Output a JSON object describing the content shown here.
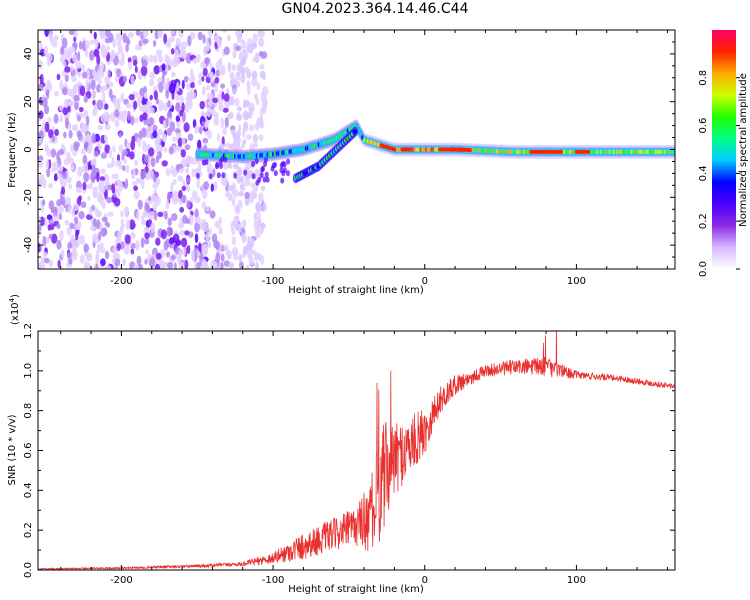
{
  "title": "GN04.2023.364.14.46.C44",
  "chart_data": [
    {
      "type": "heatmap",
      "name": "spectrogram",
      "xlabel": "Height of straight line (km)",
      "ylabel": "Frequency (Hz)",
      "xlim": [
        -255,
        165
      ],
      "ylim": [
        -50,
        50
      ],
      "xticks": [
        -200,
        -100,
        0,
        100
      ],
      "yticks": [
        -40,
        -20,
        0,
        20,
        40
      ],
      "colorbar": {
        "label": "Normalized spectral amplitude",
        "range": [
          0.0,
          1.0
        ],
        "ticks": [
          "0.0",
          "0.2",
          "0.4",
          "0.6",
          "0.8"
        ],
        "colors": [
          "#ffffff",
          "#d6b8ff",
          "#8a2be2",
          "#4b00ff",
          "#0000ff",
          "#00ccff",
          "#00ff88",
          "#22ff00",
          "#ccff00",
          "#ffaa00",
          "#ff2200",
          "#ff0066"
        ]
      },
      "features": {
        "noise_region_x": [
          -255,
          -115
        ],
        "main_line": [
          [
            -150,
            -2
          ],
          [
            -120,
            -3
          ],
          [
            -100,
            -2
          ],
          [
            -80,
            0
          ],
          [
            -60,
            4
          ],
          [
            -45,
            10
          ],
          [
            -40,
            4
          ],
          [
            -30,
            2
          ],
          [
            -20,
            0
          ],
          [
            0,
            0
          ],
          [
            20,
            0
          ],
          [
            60,
            -1
          ],
          [
            100,
            -1
          ],
          [
            165,
            -1
          ]
        ],
        "secondary_line": [
          [
            -85,
            -12
          ],
          [
            -70,
            -7
          ],
          [
            -55,
            2
          ],
          [
            -45,
            8
          ]
        ]
      }
    },
    {
      "type": "line",
      "name": "snr",
      "xlabel": "Height of straight line (km)",
      "ylabel": "SNR (10 * v/v)",
      "y_multiplier": "(x10",
      "y_multiplier_exp": "4",
      "y_multiplier_close": ")",
      "xlim": [
        -255,
        165
      ],
      "ylim": [
        0,
        1.2
      ],
      "xticks": [
        -200,
        -100,
        0,
        100
      ],
      "yticks": [
        "0.0",
        "0.2",
        "0.4",
        "0.6",
        "0.8",
        "1.0",
        "1.2"
      ],
      "color": "#e8312f",
      "envelope": {
        "x": [
          -255,
          -200,
          -150,
          -120,
          -100,
          -80,
          -60,
          -45,
          -35,
          -28,
          -20,
          -10,
          0,
          10,
          20,
          40,
          60,
          80,
          100,
          130,
          165
        ],
        "y": [
          0.005,
          0.01,
          0.02,
          0.03,
          0.06,
          0.12,
          0.18,
          0.22,
          0.28,
          0.45,
          0.55,
          0.62,
          0.7,
          0.85,
          0.93,
          1.0,
          1.02,
          1.02,
          0.98,
          0.96,
          0.92
        ],
        "noise": [
          0.003,
          0.004,
          0.008,
          0.01,
          0.03,
          0.07,
          0.08,
          0.1,
          0.2,
          0.3,
          0.18,
          0.15,
          0.12,
          0.07,
          0.05,
          0.03,
          0.04,
          0.05,
          0.02,
          0.015,
          0.015
        ]
      }
    }
  ]
}
